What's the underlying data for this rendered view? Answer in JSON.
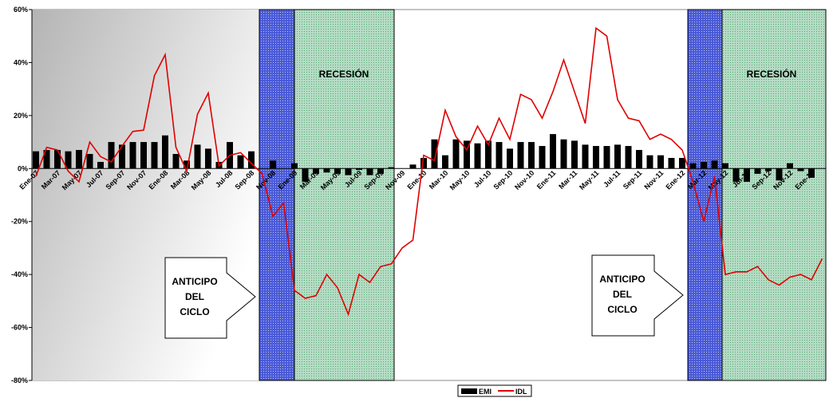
{
  "chart_data": {
    "type": "bar-line",
    "categories": [
      "Ene-07",
      null,
      "Mar-07",
      null,
      "May-07",
      null,
      "Jul-07",
      null,
      "Sep-07",
      null,
      "Nov-07",
      null,
      "Ene-08",
      null,
      "Mar-08",
      null,
      "May-08",
      null,
      "Jul-08",
      null,
      "Sep-08",
      null,
      "Nov-08",
      null,
      "Ene-09",
      null,
      "Mar-09",
      null,
      "May-09",
      null,
      "Jul-09",
      null,
      "Sep-09",
      null,
      "Nov-09",
      null,
      "Ene-10",
      null,
      "Mar-10",
      null,
      "May-10",
      null,
      "Jul-10",
      null,
      "Sep-10",
      null,
      "Nov-10",
      null,
      "Ene-11",
      null,
      "Mar-11",
      null,
      "May-11",
      null,
      "Jul-11",
      null,
      "Sep-11",
      null,
      "Nov-11",
      null,
      "Ene-12",
      null,
      "Mar-12",
      null,
      "May-12",
      null,
      "Jul-12",
      null,
      "Sep-12",
      null,
      "Nov-12",
      null,
      "Ene-13",
      null
    ],
    "series": [
      {
        "name": "EMI",
        "type": "bar",
        "color": "#000000",
        "values": [
          6.5,
          7,
          7,
          6.5,
          7,
          5.5,
          2.5,
          10,
          9,
          10,
          10,
          10,
          12.5,
          5.5,
          3,
          9,
          7.5,
          2.5,
          10,
          5,
          6.5,
          0,
          3,
          0,
          2,
          -5,
          -2,
          -1.5,
          -2,
          -2.5,
          -0.5,
          -2.5,
          -2,
          0.5,
          0,
          1.5,
          4,
          11,
          5,
          11,
          10.5,
          9.5,
          10.5,
          10,
          7.5,
          10,
          10,
          8.5,
          13,
          11,
          10.5,
          9,
          8.5,
          8.5,
          9,
          8.5,
          7,
          5,
          5,
          4,
          4,
          2,
          2.5,
          3,
          2,
          -5,
          -5,
          -2,
          -1,
          -4.5,
          2,
          -1,
          -3.5,
          0
        ]
      },
      {
        "name": "IDL",
        "type": "line",
        "color": "#e00000",
        "values": [
          -3,
          8,
          7,
          -1,
          -5,
          10,
          4.5,
          2.5,
          8.5,
          14,
          14.5,
          35,
          43,
          8,
          -1,
          20.5,
          28.5,
          1,
          5,
          6,
          2,
          -2,
          -18,
          -13,
          -46,
          -49,
          -48,
          -40,
          -45,
          -55,
          -40,
          -43,
          -37,
          -36,
          -30,
          -27,
          5,
          3,
          22,
          12,
          7,
          16,
          9,
          19,
          11,
          28,
          26,
          19,
          29,
          41,
          29,
          17,
          53,
          50,
          26,
          19,
          18,
          11,
          13,
          11,
          7,
          -5,
          -20,
          -3,
          -40,
          -39,
          -39,
          -37,
          -42,
          -44,
          -41,
          -40,
          -42,
          -34
        ]
      }
    ],
    "ylim": [
      -80,
      60
    ],
    "yticks": [
      {
        "value": -80,
        "label": "-80%"
      },
      {
        "value": -60,
        "label": "-60%"
      },
      {
        "value": -40,
        "label": "-40%"
      },
      {
        "value": -20,
        "label": "-20%"
      },
      {
        "value": 0,
        "label": "0%"
      },
      {
        "value": 20,
        "label": "20%"
      },
      {
        "value": 40,
        "label": "40%"
      },
      {
        "value": 60,
        "label": "60%"
      }
    ],
    "grid": false,
    "legend": "bottom",
    "annotations": [
      {
        "text": "RECESIÓN"
      },
      {
        "text": "RECESIÓN"
      },
      {
        "lines": [
          "ANTICIPO",
          "DEL",
          "CICLO"
        ]
      },
      {
        "lines": [
          "ANTICIPO",
          "DEL",
          "CICLO"
        ]
      }
    ]
  }
}
